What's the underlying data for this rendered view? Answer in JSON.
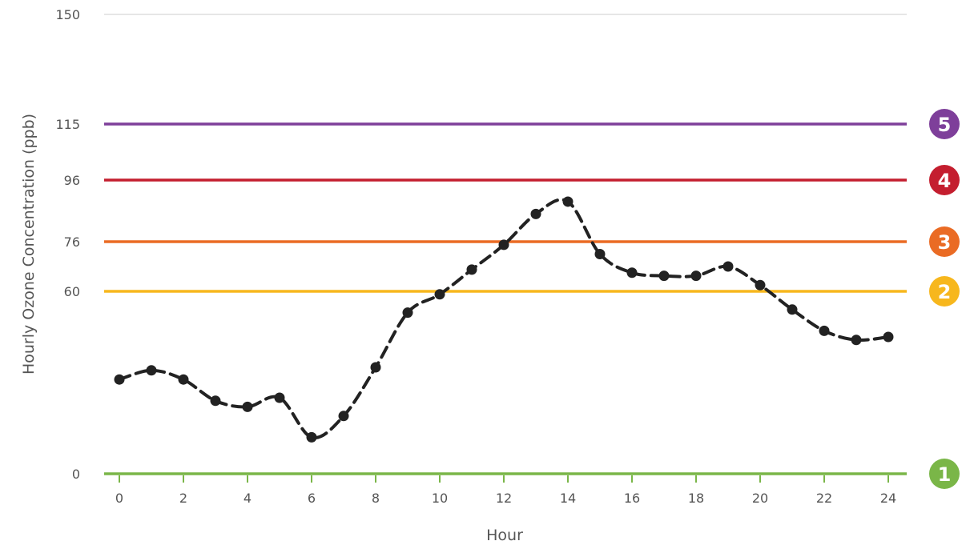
{
  "chart_data": {
    "type": "line",
    "xlabel": "Hour",
    "ylabel": "Hourly Ozone Concentration (ppb)",
    "x": [
      0,
      1,
      2,
      3,
      4,
      5,
      6,
      7,
      8,
      9,
      10,
      11,
      12,
      13,
      14,
      15,
      16,
      17,
      18,
      19,
      20,
      21,
      22,
      23,
      24
    ],
    "series": [
      {
        "values": [
          31,
          34,
          31,
          24,
          22,
          25,
          12,
          19,
          35,
          53,
          59,
          67,
          75,
          85,
          89,
          72,
          66,
          65,
          65,
          68,
          62,
          54,
          47,
          44,
          45
        ],
        "color": "#222222",
        "style": "dashed-with-markers"
      }
    ],
    "x_ticks": [
      "0",
      "2",
      "4",
      "6",
      "8",
      "10",
      "12",
      "14",
      "16",
      "18",
      "20",
      "22",
      "24"
    ],
    "y_ticks": [
      "0",
      "60",
      "76",
      "96",
      "115",
      "150"
    ],
    "xlim": [
      0,
      24
    ],
    "ylim": [
      0,
      150
    ],
    "y_scale": "piecewise (non-uniform spacing between threshold ticks)",
    "threshold_lines": [
      {
        "level": "1",
        "value": 0,
        "color": "#7ab648"
      },
      {
        "level": "2",
        "value": 60,
        "color": "#f7b71d"
      },
      {
        "level": "3",
        "value": 76,
        "color": "#ea6b24"
      },
      {
        "level": "4",
        "value": 96,
        "color": "#c41e2f"
      },
      {
        "level": "5",
        "value": 115,
        "color": "#7e3f9a"
      }
    ],
    "top_gridline": {
      "value": 150,
      "color": "#e6e6e6"
    },
    "grid": false,
    "legend": "right-side numbered badges"
  }
}
